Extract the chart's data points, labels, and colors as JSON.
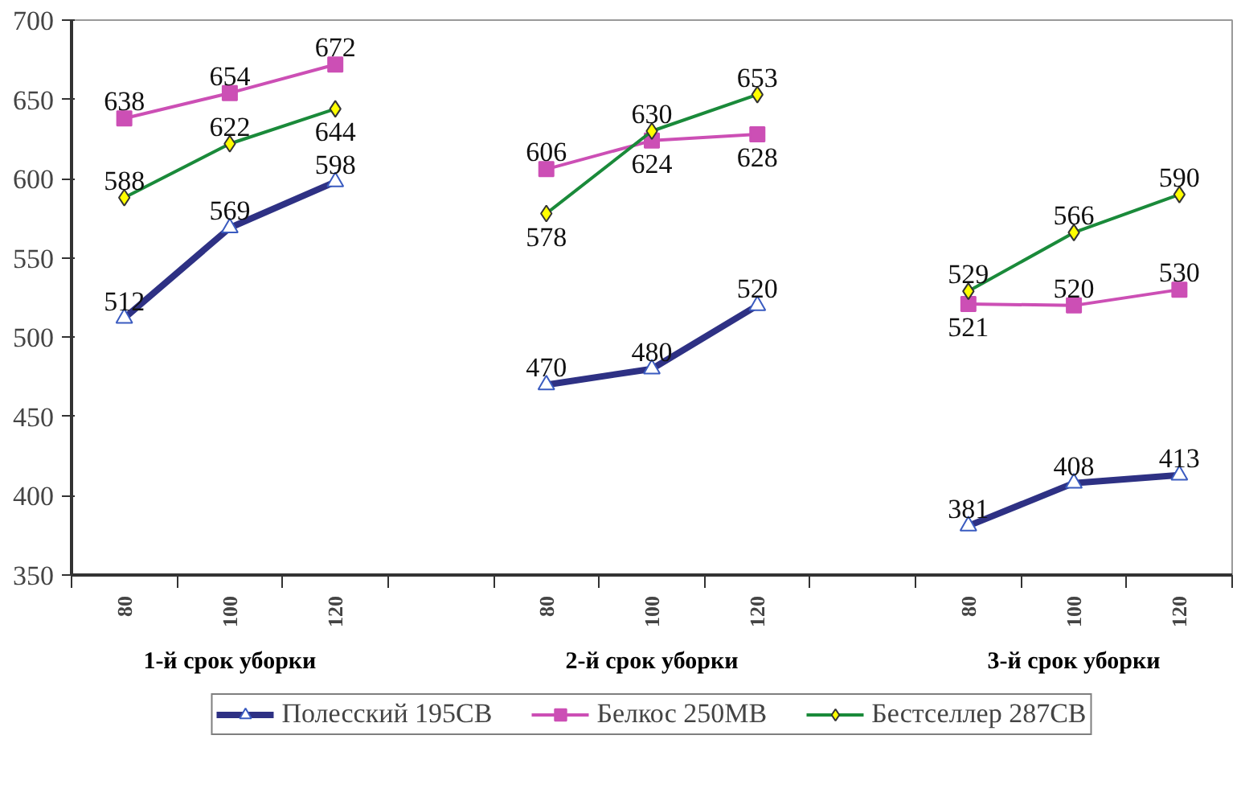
{
  "chart_data": {
    "type": "line",
    "categories": [
      "80",
      "100",
      "120",
      null,
      "80",
      "100",
      "120",
      null,
      "80",
      "100",
      "120"
    ],
    "series": [
      {
        "name": "Полесский 195СВ",
        "color": "#2e3184",
        "marker": "triangle",
        "values": [
          512,
          569,
          598,
          null,
          470,
          480,
          520,
          null,
          381,
          408,
          413
        ]
      },
      {
        "name": "Белкос 250МВ",
        "color": "#cc4fb5",
        "marker": "square",
        "values": [
          638,
          654,
          672,
          null,
          606,
          624,
          628,
          null,
          521,
          520,
          530
        ]
      },
      {
        "name": "Бестселлер 287СВ",
        "color": "#1a8a3a",
        "marker": "diamond",
        "values": [
          588,
          622,
          644,
          null,
          578,
          630,
          653,
          null,
          529,
          566,
          590
        ]
      }
    ],
    "annotations": [
      "1-й срок уборки",
      "2-й срок уборки",
      "3-й срок уборки"
    ],
    "ylim": [
      350,
      700
    ],
    "yticks": [
      350,
      400,
      450,
      500,
      550,
      600,
      650,
      700
    ],
    "data_labels": true,
    "grid": false,
    "legend": "bottom"
  }
}
